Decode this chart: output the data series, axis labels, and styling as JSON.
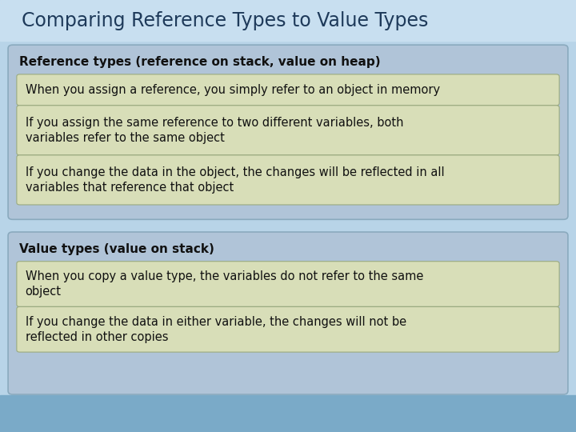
{
  "title": "Comparing Reference Types to Value Types",
  "title_fontsize": 17,
  "title_color": "#1e3a5a",
  "bg_color": "#b8d4e8",
  "title_bar_color": "#c8dff0",
  "bottom_bar_color": "#7aaac8",
  "section1_header": "Reference types (reference on stack, value on heap)",
  "section1_items": [
    "When you assign a reference, you simply refer to an object in memory",
    "If you assign the same reference to two different variables, both\nvariables refer to the same object",
    "If you change the data in the object, the changes will be reflected in all\nvariables that reference that object"
  ],
  "section2_header": "Value types (value on stack)",
  "section2_items": [
    "When you copy a value type, the variables do not refer to the same\nobject",
    "If you change the data in either variable, the changes will not be\nreflected in other copies"
  ],
  "section_bg": "#b0c4d8",
  "section_border": "#8aaabe",
  "item_bg": "#d8deb8",
  "item_border": "#9aaa80",
  "text_color": "#111111",
  "header_fontsize": 11,
  "item_fontsize": 10.5
}
